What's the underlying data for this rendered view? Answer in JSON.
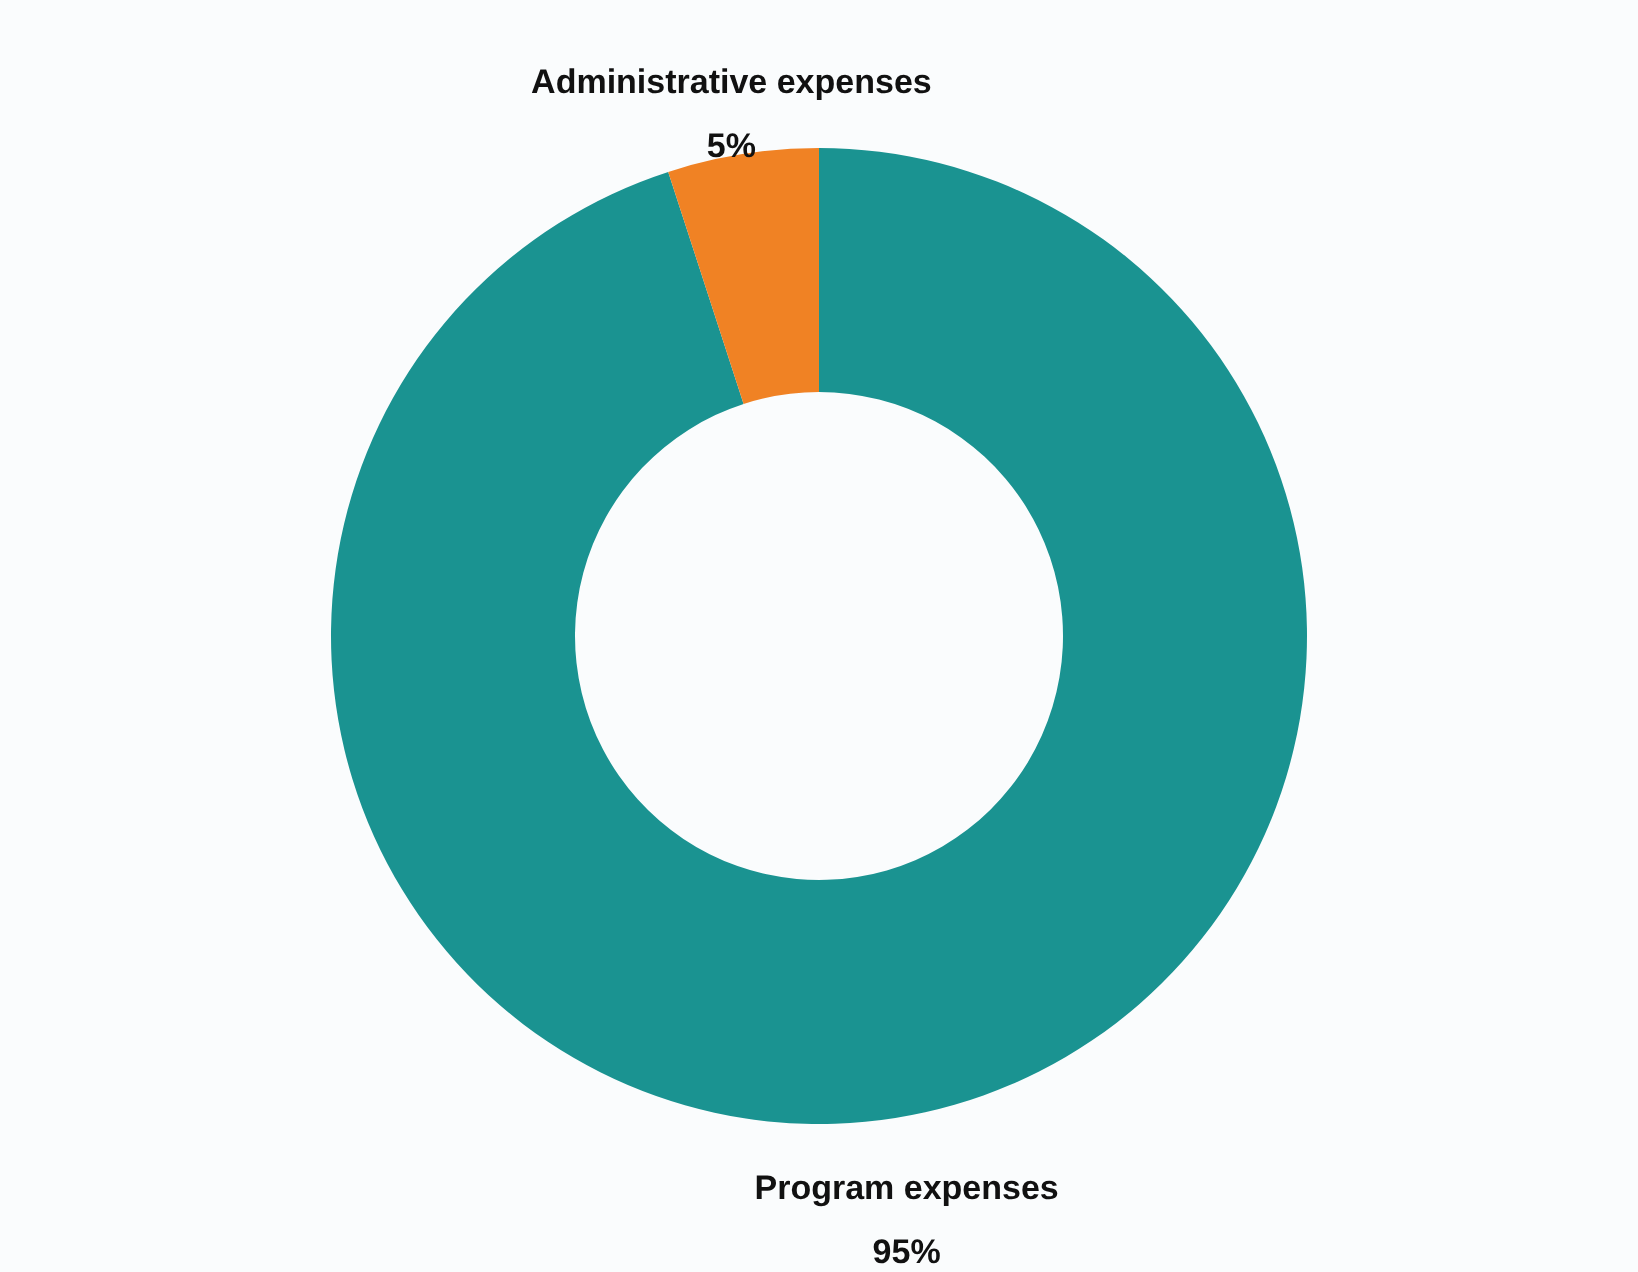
{
  "chart_data": {
    "type": "donut",
    "categories": [
      "Program expenses",
      "Administrative expenses"
    ],
    "values": [
      95,
      5
    ],
    "colors": [
      "#1a9391",
      "#f08224"
    ],
    "value_labels": [
      "95%",
      "5%"
    ]
  }
}
